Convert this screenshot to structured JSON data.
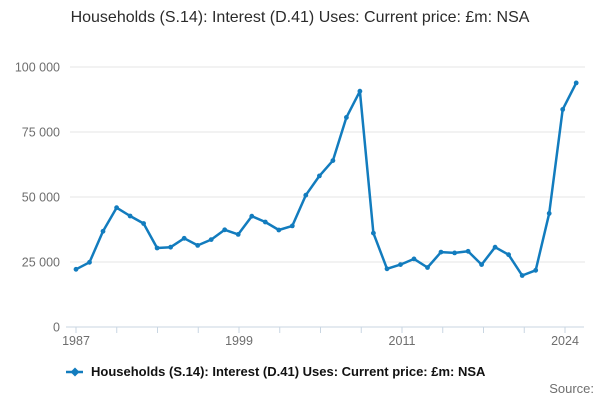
{
  "header": {
    "title": "Households (S.14): Interest (D.41) Uses: Current price: £m: NSA"
  },
  "legend": {
    "label": "Households (S.14): Interest (D.41) Uses: Current price: £m: NSA"
  },
  "footer": {
    "source_label": "Source:"
  },
  "colors": {
    "line": "#127cbe",
    "grid": "#e4e4e4",
    "axis": "#c9d6e2",
    "tick_label": "#6e6e6e",
    "title": "#2b2b2b",
    "legend_text": "#111111",
    "source_text": "#6f6f6f"
  },
  "chart_data": {
    "type": "line",
    "title": "Households (S.14): Interest (D.41) Uses: Current price: £m: NSA",
    "xlabel": "",
    "ylabel": "",
    "ylim": [
      0,
      100000
    ],
    "grid": true,
    "legend_position": "bottom-left",
    "x": [
      1987,
      1988,
      1989,
      1990,
      1991,
      1992,
      1993,
      1994,
      1995,
      1996,
      1997,
      1998,
      1999,
      2000,
      2001,
      2002,
      2003,
      2004,
      2005,
      2006,
      2007,
      2008,
      2009,
      2010,
      2011,
      2012,
      2013,
      2014,
      2015,
      2016,
      2017,
      2018,
      2019,
      2020,
      2021,
      2022,
      2023,
      2024
    ],
    "series": [
      {
        "name": "Households (S.14): Interest (D.41) Uses: Current price: £m: NSA",
        "values": [
          22200,
          24900,
          36800,
          45900,
          42700,
          39800,
          30400,
          30700,
          34100,
          31400,
          33600,
          37400,
          35600,
          42600,
          40400,
          37300,
          38900,
          50700,
          58100,
          64000,
          80600,
          90700,
          36100,
          22400,
          24000,
          26200,
          22900,
          28800,
          28500,
          29100,
          24000,
          30700,
          27800,
          19800,
          21800,
          43700,
          83700,
          93900
        ]
      }
    ],
    "ytick_values": [
      0,
      25000,
      50000,
      75000,
      100000
    ],
    "ytick_labels": [
      "0",
      "25 000",
      "50 000",
      "75 000",
      "100 000"
    ],
    "xticks": {
      "count": 13,
      "labels": [
        {
          "index": 0,
          "label": "1987"
        },
        {
          "index": 4,
          "label": "1999"
        },
        {
          "index": 8,
          "label": "2011"
        },
        {
          "index": 12,
          "label": "2024"
        }
      ]
    }
  }
}
